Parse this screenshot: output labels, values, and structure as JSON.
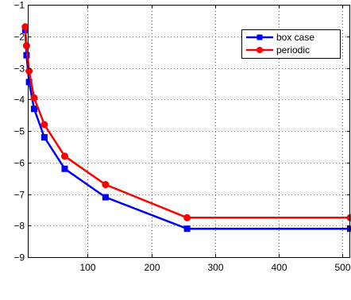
{
  "chart_data": {
    "type": "line",
    "title": "",
    "xlabel": "",
    "ylabel": "",
    "xlim": [
      0,
      512
    ],
    "ylim": [
      -9,
      -1
    ],
    "xticks": [
      100,
      200,
      300,
      400,
      500
    ],
    "yticks": [
      -1,
      -2,
      -3,
      -4,
      -5,
      -6,
      -7,
      -8,
      -9
    ],
    "xtick_labels": [
      "100",
      "200",
      "300",
      "400",
      "500"
    ],
    "ytick_labels": [
      "−1",
      "−2",
      "−3",
      "−4",
      "−5",
      "−6",
      "−7",
      "−8",
      "−9"
    ],
    "grid": true,
    "legend_position": "top-right",
    "series": [
      {
        "name": "box case",
        "color": "#0000ff",
        "marker": "square",
        "x": [
          2,
          4,
          8,
          16,
          32,
          64,
          128,
          256,
          512
        ],
        "y": [
          -1.8,
          -2.6,
          -3.45,
          -4.3,
          -5.2,
          -6.2,
          -7.1,
          -8.1,
          -8.1
        ]
      },
      {
        "name": "periodic",
        "color": "#ff0000",
        "marker": "circle",
        "x": [
          2,
          4,
          8,
          16,
          32,
          64,
          128,
          256,
          512
        ],
        "y": [
          -1.7,
          -2.3,
          -3.1,
          -3.95,
          -4.8,
          -5.8,
          -6.7,
          -7.75,
          -7.75
        ]
      }
    ]
  }
}
